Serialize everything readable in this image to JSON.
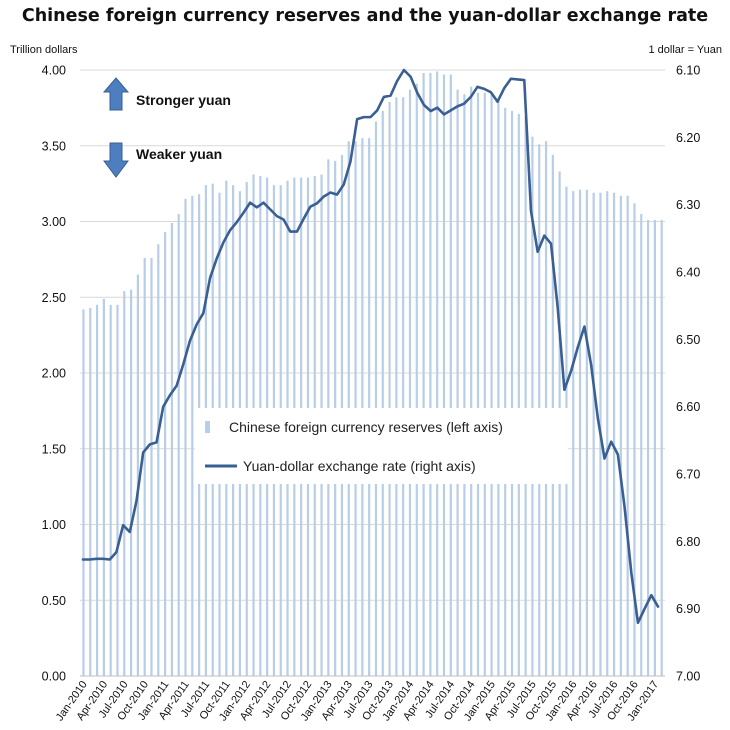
{
  "title": "Chinese foreign currency reserves and the yuan-dollar exchange rate",
  "left_axis_unit": "Trillion dollars",
  "right_axis_unit": "1 dollar = Yuan",
  "annotations": {
    "up_label": "Stronger yuan",
    "down_label": "Weaker yuan"
  },
  "colors": {
    "bars": "#b8cde6",
    "line": "#3a5f93",
    "arrow": "#4d7ebf",
    "grid": "#d9d9d9"
  },
  "chart_data": {
    "type": "bar+line",
    "title": "Chinese foreign currency reserves and the yuan-dollar exchange rate",
    "x_labels": [
      "Jan-2010",
      "Apr-2010",
      "Jul-2010",
      "Oct-2010",
      "Jan-2011",
      "Apr-2011",
      "Jul-2011",
      "Oct-2011",
      "Jan-2012",
      "Apr-2012",
      "Jul-2012",
      "Oct-2012",
      "Jan-2013",
      "Apr-2013",
      "Jul-2013",
      "Oct-2013",
      "Jan-2014",
      "Apr-2014",
      "Jul-2014",
      "Oct-2014",
      "Jan-2015",
      "Apr-2015",
      "Jul-2015",
      "Oct-2015",
      "Jan-2016",
      "Apr-2016",
      "Jul-2016",
      "Oct-2016",
      "Jan-2017"
    ],
    "left_axis": {
      "ticks": [
        "0.00",
        "0.50",
        "1.00",
        "1.50",
        "2.00",
        "2.50",
        "3.00",
        "3.50",
        "4.00"
      ],
      "ylim": [
        0,
        4
      ]
    },
    "right_axis": {
      "ticks": [
        "6.10",
        "6.20",
        "6.30",
        "6.40",
        "6.50",
        "6.60",
        "6.70",
        "6.80",
        "6.90",
        "7.00"
      ],
      "ylim": [
        6.1,
        7.0
      ],
      "inverted": true
    },
    "series": [
      {
        "name": "Chinese foreign currency reserves (left axis)",
        "type": "bar",
        "axis": "left",
        "values": [
          2.42,
          2.43,
          2.45,
          2.49,
          2.45,
          2.45,
          2.54,
          2.55,
          2.65,
          2.76,
          2.76,
          2.85,
          2.93,
          2.99,
          3.05,
          3.15,
          3.17,
          3.18,
          3.24,
          3.25,
          3.19,
          3.27,
          3.24,
          3.2,
          3.26,
          3.31,
          3.3,
          3.29,
          3.24,
          3.24,
          3.27,
          3.29,
          3.29,
          3.29,
          3.3,
          3.31,
          3.41,
          3.4,
          3.44,
          3.53,
          3.53,
          3.55,
          3.55,
          3.66,
          3.73,
          3.79,
          3.82,
          3.82,
          3.87,
          3.91,
          3.98,
          3.98,
          3.99,
          3.97,
          3.97,
          3.87,
          3.84,
          3.89,
          3.85,
          3.85,
          3.84,
          3.8,
          3.75,
          3.73,
          3.71,
          3.69,
          3.56,
          3.51,
          3.53,
          3.44,
          3.33,
          3.23,
          3.2,
          3.21,
          3.21,
          3.19,
          3.19,
          3.2,
          3.19,
          3.17,
          3.17,
          3.12,
          3.05,
          3.01,
          3.01,
          3.01
        ]
      },
      {
        "name": "Yuan-dollar exchange rate (right axis)",
        "type": "line",
        "axis": "right",
        "values": [
          6.827,
          6.827,
          6.826,
          6.826,
          6.827,
          6.816,
          6.776,
          6.786,
          6.74,
          6.668,
          6.656,
          6.653,
          6.6,
          6.583,
          6.569,
          6.537,
          6.502,
          6.478,
          6.461,
          6.409,
          6.38,
          6.356,
          6.338,
          6.326,
          6.312,
          6.297,
          6.304,
          6.297,
          6.307,
          6.317,
          6.322,
          6.34,
          6.34,
          6.321,
          6.303,
          6.298,
          6.288,
          6.282,
          6.285,
          6.27,
          6.236,
          6.173,
          6.17,
          6.17,
          6.16,
          6.14,
          6.138,
          6.116,
          6.1,
          6.11,
          6.134,
          6.152,
          6.161,
          6.156,
          6.166,
          6.16,
          6.154,
          6.15,
          6.14,
          6.125,
          6.128,
          6.133,
          6.147,
          6.127,
          6.113,
          6.114,
          6.115,
          6.309,
          6.37,
          6.346,
          6.358,
          6.453,
          6.575,
          6.547,
          6.512,
          6.481,
          6.538,
          6.617,
          6.677,
          6.652,
          6.671,
          6.749,
          6.846,
          6.921,
          6.9,
          6.88,
          6.897
        ]
      }
    ],
    "legend": [
      "Chinese foreign currency reserves (left axis)",
      "Yuan-dollar exchange rate (right axis)"
    ],
    "legend_position": "center",
    "grid": true
  }
}
